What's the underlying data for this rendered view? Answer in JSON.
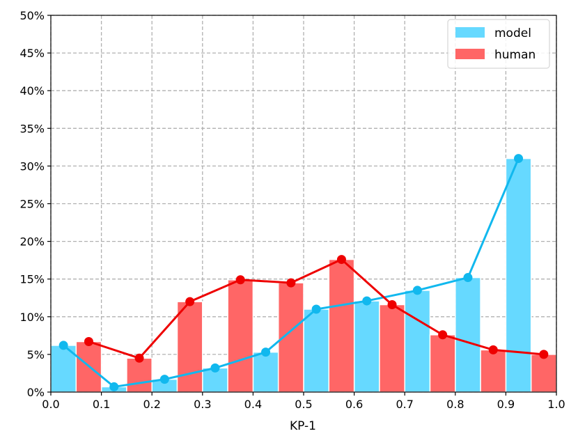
{
  "chart_data": {
    "type": "bar",
    "xlabel": "KP-1",
    "ylabel": "",
    "xlim": [
      0.0,
      1.0
    ],
    "ylim": [
      0,
      50
    ],
    "x_ticks": [
      "0.0",
      "0.1",
      "0.2",
      "0.3",
      "0.4",
      "0.5",
      "0.6",
      "0.7",
      "0.8",
      "0.9",
      "1.0"
    ],
    "y_ticks": [
      "0%",
      "5%",
      "10%",
      "15%",
      "20%",
      "25%",
      "30%",
      "35%",
      "40%",
      "45%",
      "50%"
    ],
    "grid": true,
    "legend_position": "top-right",
    "bins": [
      0.0,
      0.1,
      0.2,
      0.3,
      0.4,
      0.5,
      0.6,
      0.7,
      0.8,
      0.9
    ],
    "bin_width": 0.1,
    "series": [
      {
        "name": "model",
        "bar_color": "#66d9ff",
        "line_color": "#11b8ee",
        "x": [
          0.025,
          0.125,
          0.225,
          0.325,
          0.425,
          0.525,
          0.625,
          0.725,
          0.825,
          0.925
        ],
        "values": [
          6.2,
          0.7,
          1.7,
          3.2,
          5.3,
          11.0,
          12.1,
          13.5,
          15.2,
          31.0
        ]
      },
      {
        "name": "human",
        "bar_color": "#ff6666",
        "line_color": "#ee0000",
        "x": [
          0.075,
          0.175,
          0.275,
          0.375,
          0.475,
          0.575,
          0.675,
          0.775,
          0.875,
          0.975
        ],
        "values": [
          6.7,
          4.5,
          12.0,
          14.9,
          14.5,
          17.6,
          11.6,
          7.6,
          5.6,
          5.0
        ]
      }
    ]
  }
}
